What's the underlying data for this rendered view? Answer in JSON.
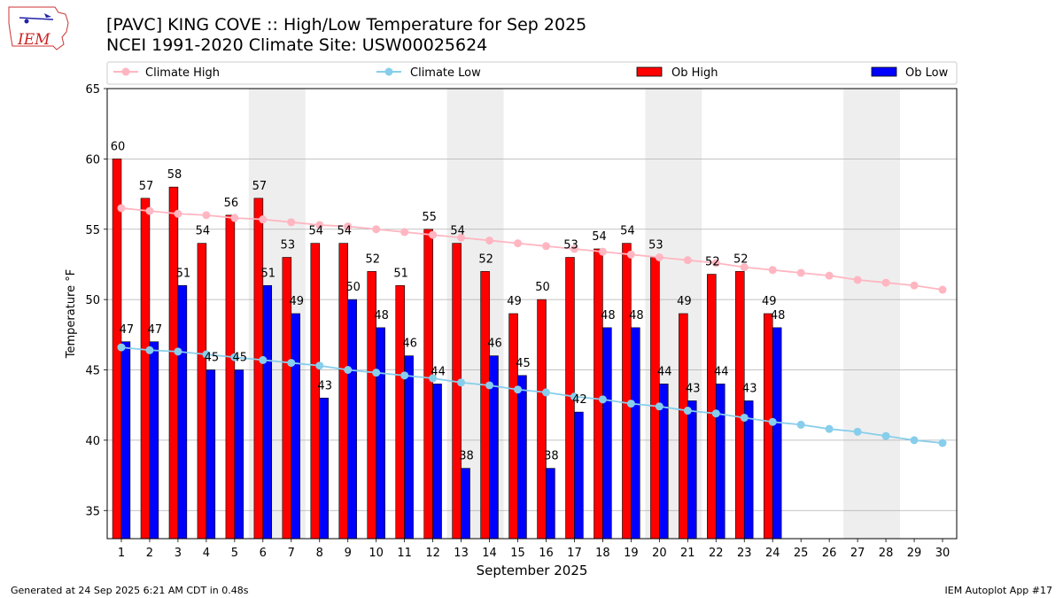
{
  "header": {
    "title": "[PAVC] KING COVE :: High/Low Temperature for Sep 2025",
    "subtitle": "NCEI 1991-2020 Climate Site: USW00025624",
    "logo_text": "IEM"
  },
  "footer": {
    "generated": "Generated at 24 Sep 2025 6:21 AM CDT in 0.48s",
    "app": "IEM Autoplot App #17"
  },
  "colors": {
    "ob_high": "#ff0000",
    "ob_low": "#0000ff",
    "climate_high": "#ffb6c1",
    "climate_low": "#87ceeb",
    "weekend_band": "#eeeeee",
    "grid": "#b0b0b0"
  },
  "chart_data": {
    "type": "bar",
    "xlabel": "September 2025",
    "ylabel": "Temperature °F",
    "ylim": [
      33,
      65
    ],
    "yticks": [
      35,
      40,
      45,
      50,
      55,
      60,
      65
    ],
    "grid": true,
    "legend_position": "top",
    "days": [
      1,
      2,
      3,
      4,
      5,
      6,
      7,
      8,
      9,
      10,
      11,
      12,
      13,
      14,
      15,
      16,
      17,
      18,
      19,
      20,
      21,
      22,
      23,
      24,
      25,
      26,
      27,
      28,
      29,
      30
    ],
    "weekend_bands": [
      [
        6,
        7
      ],
      [
        13,
        14
      ],
      [
        20,
        21
      ],
      [
        27,
        28
      ]
    ],
    "series": [
      {
        "name": "Climate High",
        "kind": "line",
        "values": [
          56.5,
          56.3,
          56.1,
          56.0,
          55.8,
          55.7,
          55.5,
          55.3,
          55.2,
          55.0,
          54.8,
          54.6,
          54.4,
          54.2,
          54.0,
          53.8,
          53.6,
          53.4,
          53.2,
          53.0,
          52.8,
          52.6,
          52.3,
          52.1,
          51.9,
          51.7,
          51.4,
          51.2,
          51.0,
          50.7
        ]
      },
      {
        "name": "Climate Low",
        "kind": "line",
        "values": [
          46.6,
          46.4,
          46.3,
          46.1,
          45.9,
          45.7,
          45.5,
          45.3,
          45.0,
          44.8,
          44.6,
          44.4,
          44.1,
          43.9,
          43.6,
          43.4,
          43.1,
          42.9,
          42.6,
          42.4,
          42.1,
          41.9,
          41.6,
          41.3,
          41.1,
          40.8,
          40.6,
          40.3,
          40.0,
          39.8
        ]
      },
      {
        "name": "Ob High",
        "kind": "bar",
        "values": [
          60,
          57.2,
          58,
          54,
          56,
          57.2,
          53,
          54,
          54,
          52,
          51,
          55,
          54,
          52,
          49,
          50,
          53,
          53.6,
          54,
          53,
          49,
          51.8,
          52,
          49
        ],
        "labels": [
          "60",
          "57",
          "58",
          "54",
          "56",
          "57",
          "53",
          "54",
          "54",
          "52",
          "51",
          "55",
          "54",
          "52",
          "49",
          "50",
          "53",
          "54",
          "54",
          "53",
          "49",
          "52",
          "52",
          "49"
        ]
      },
      {
        "name": "Ob Low",
        "kind": "bar",
        "values": [
          47,
          47,
          51,
          45,
          45,
          51,
          49,
          43,
          50,
          48,
          46,
          44,
          38,
          46,
          44.6,
          38,
          42,
          48,
          48,
          44,
          42.8,
          44,
          42.8,
          48
        ],
        "labels": [
          "47",
          "47",
          "51",
          "45",
          "45",
          "51",
          "49",
          "43",
          "50",
          "48",
          "46",
          "44",
          "38",
          "46",
          "45",
          "38",
          "42",
          "48",
          "48",
          "44",
          "43",
          "44",
          "43",
          "48"
        ]
      }
    ]
  }
}
